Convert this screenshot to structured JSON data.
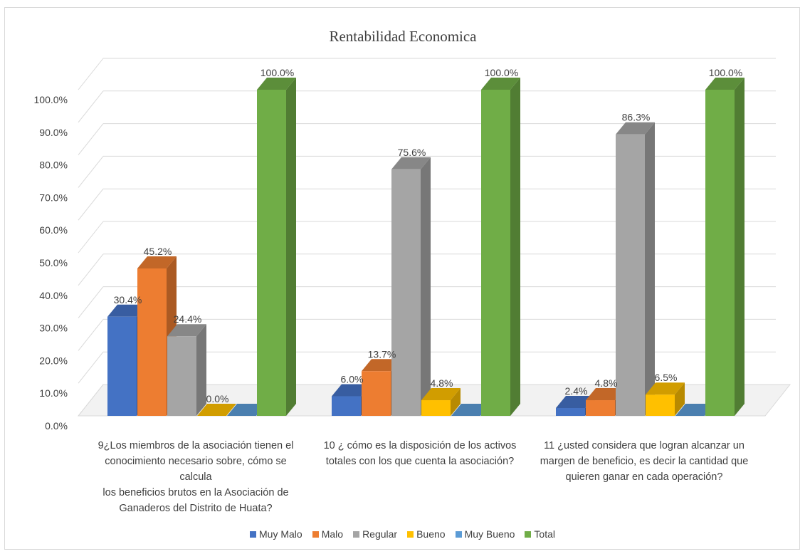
{
  "chart_data": {
    "type": "bar",
    "title": "Rentabilidad Economica",
    "categories": [
      "9¿Los miembros de la asociación tienen el conocimiento necesario sobre, cómo se calcula los beneficios brutos en la Asociación de Ganaderos del Distrito de Huata?",
      "10 ¿ cómo es la disposición de los activos totales con los que cuenta la asociación?",
      "11 ¿usted considera que logran alcanzar un margen de beneficio, es decir la cantidad que quieren ganar en cada operación?"
    ],
    "category_lines": [
      [
        "9¿Los miembros de la asociación tienen el",
        "conocimiento necesario sobre, cómo se calcula",
        "los beneficios brutos en la Asociación de",
        "Ganaderos del Distrito de Huata?"
      ],
      [
        "10 ¿ cómo es la disposición de los activos",
        "totales con los que cuenta la asociación?"
      ],
      [
        "11 ¿usted considera que logran alcanzar un",
        "margen de beneficio, es decir la cantidad que",
        "quieren ganar en cada operación?"
      ]
    ],
    "series": [
      {
        "name": "Muy Malo",
        "color": "#4472c4",
        "values": [
          30.4,
          6.0,
          2.4
        ],
        "labels": [
          "30.4%",
          "6.0%",
          "2.4%"
        ]
      },
      {
        "name": "Malo",
        "color": "#ed7d31",
        "values": [
          45.2,
          13.7,
          4.8
        ],
        "labels": [
          "45.2%",
          "13.7%",
          "4.8%"
        ]
      },
      {
        "name": "Regular",
        "color": "#a5a5a5",
        "values": [
          24.4,
          75.6,
          86.3
        ],
        "labels": [
          "24.4%",
          "75.6%",
          "86.3%"
        ]
      },
      {
        "name": "Bueno",
        "color": "#ffc000",
        "values": [
          0.0,
          4.8,
          6.5
        ],
        "labels": [
          "0.0%",
          "4.8%",
          "6.5%"
        ]
      },
      {
        "name": "Muy Bueno",
        "color": "#5b9bd5",
        "values": [
          0,
          0,
          0
        ],
        "labels": [
          "",
          "",
          ""
        ]
      },
      {
        "name": "Total",
        "color": "#70ad47",
        "values": [
          100.0,
          100.0,
          100.0
        ],
        "labels": [
          "100.0%",
          "100.0%",
          "100.0%"
        ]
      }
    ],
    "yticks": [
      "0.0%",
      "10.0%",
      "20.0%",
      "30.0%",
      "40.0%",
      "50.0%",
      "60.0%",
      "70.0%",
      "80.0%",
      "90.0%",
      "100.0%"
    ],
    "ylim": [
      0,
      100
    ],
    "grid": true,
    "legend_position": "bottom"
  }
}
